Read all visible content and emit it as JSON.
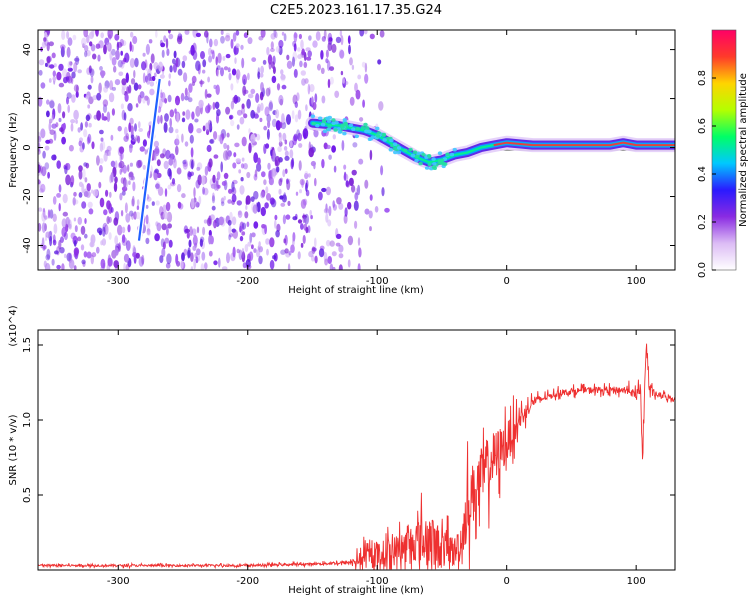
{
  "title": "C2E5.2023.161.17.35.G24",
  "chart_data": [
    {
      "type": "heatmap",
      "name": "spectrogram",
      "xlabel": "Height of straight line (km)",
      "ylabel": "Frequency (Hz)",
      "xlim": [
        -362,
        130
      ],
      "ylim": [
        -50,
        48
      ],
      "xticks": [
        -300,
        -200,
        -100,
        0,
        100
      ],
      "xtick_labels": [
        "-300",
        "-200",
        "-100",
        "0",
        "100"
      ],
      "yticks": [
        40,
        20,
        0,
        -20,
        -40
      ],
      "ytick_labels": [
        "40",
        "20",
        "0",
        "-20",
        "-40"
      ],
      "colorbar": {
        "label": "Normalized spectral amplitude",
        "range": [
          0,
          1
        ],
        "ticks": [
          0.0,
          0.2,
          0.4,
          0.6,
          0.8
        ],
        "tick_labels": [
          "0.0",
          "0.2",
          "0.4",
          "0.6",
          "0.8"
        ],
        "colors": [
          "#ffffff",
          "#dcbcf5",
          "#8a2be2",
          "#2a1aff",
          "#00c8ff",
          "#00ff66",
          "#b4ff00",
          "#ffd400",
          "#ff3a2a",
          "#ff0066"
        ]
      },
      "noise_region_x": [
        -362,
        -130
      ],
      "meteor_track": {
        "x": [
          -150,
          -130,
          -110,
          -100,
          -90,
          -80,
          -70,
          -60,
          -50,
          -45,
          -40,
          -30,
          -20,
          -10,
          0,
          20,
          40,
          60,
          80,
          90,
          100,
          110,
          130
        ],
        "y": [
          10,
          9,
          7,
          5,
          2,
          -1,
          -4,
          -6,
          -5,
          -4,
          -3,
          -2,
          0,
          1,
          2,
          1,
          1,
          1,
          1,
          2,
          1,
          1,
          1
        ]
      },
      "streak": {
        "x": [
          -284,
          -268
        ],
        "y": [
          -38,
          28
        ]
      },
      "reference_lines_y": [
        3,
        -1
      ]
    },
    {
      "type": "line",
      "name": "snr",
      "xlabel": "Height of straight line (km)",
      "ylabel": "SNR (10 * v/v)",
      "scale_label": "(x10^4)",
      "xlim": [
        -362,
        130
      ],
      "ylim": [
        0,
        1.6
      ],
      "xticks": [
        -300,
        -200,
        -100,
        0,
        100
      ],
      "xtick_labels": [
        "-300",
        "-200",
        "-100",
        "0",
        "100"
      ],
      "yticks": [
        0.5,
        1.0,
        1.5
      ],
      "ytick_labels": [
        "0.5",
        "1.0",
        "1.5"
      ],
      "series": [
        {
          "name": "SNR",
          "color": "#ee3030",
          "x": [
            -362,
            -300,
            -250,
            -200,
            -150,
            -120,
            -110,
            -100,
            -90,
            -80,
            -70,
            -60,
            -50,
            -40,
            -35,
            -30,
            -20,
            -10,
            0,
            10,
            20,
            30,
            40,
            60,
            80,
            95,
            100,
            103,
            105,
            108,
            110,
            115,
            120,
            130
          ],
          "y": [
            0.03,
            0.03,
            0.03,
            0.03,
            0.04,
            0.05,
            0.08,
            0.1,
            0.12,
            0.15,
            0.2,
            0.18,
            0.15,
            0.12,
            0.2,
            0.45,
            0.6,
            0.75,
            0.85,
            1.0,
            1.12,
            1.15,
            1.18,
            1.2,
            1.2,
            1.2,
            1.15,
            1.25,
            0.8,
            1.55,
            1.2,
            1.17,
            1.16,
            1.14
          ]
        }
      ],
      "noise_amplitude_y": [
        0.01,
        0.01,
        0.01,
        0.01,
        0.01,
        0.02,
        0.1,
        0.12,
        0.14,
        0.15,
        0.2,
        0.25,
        0.2,
        0.15,
        0.2,
        0.3,
        0.3,
        0.25,
        0.2,
        0.1,
        0.05,
        0.03,
        0.03,
        0.03,
        0.03,
        0.04,
        0.05,
        0.08,
        0.1,
        0.1,
        0.05,
        0.03,
        0.03,
        0.03
      ]
    }
  ]
}
